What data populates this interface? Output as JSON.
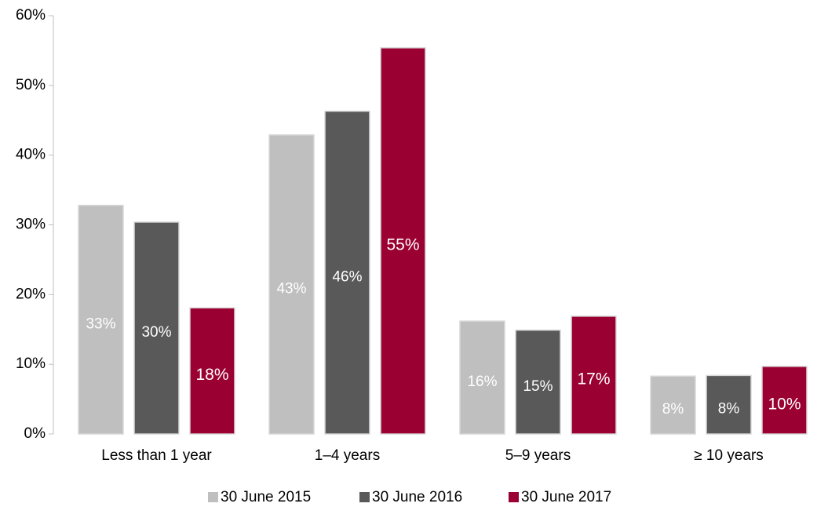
{
  "chart_data": {
    "type": "bar",
    "categories": [
      "Less than 1 year",
      "1–4 years",
      "5–9 years",
      "≥ 10 years"
    ],
    "series": [
      {
        "name": "30 June 2015",
        "color": "#bfbfbf",
        "values": [
          32.8,
          42.9,
          16.2,
          8.3
        ],
        "value_labels": [
          "33%",
          "43%",
          "16%",
          "8%"
        ]
      },
      {
        "name": "30 June 2016",
        "color": "#595959",
        "values": [
          30.4,
          46.3,
          14.9,
          8.4
        ],
        "value_labels": [
          "30%",
          "46%",
          "15%",
          "8%"
        ]
      },
      {
        "name": "30 June 2017",
        "color": "#9b0032",
        "values": [
          18.1,
          55.4,
          16.9,
          9.7
        ],
        "value_labels": [
          "18%",
          "55%",
          "17%",
          "10%"
        ]
      }
    ],
    "ylim": [
      0,
      60
    ],
    "yticks": [
      {
        "value": 0,
        "label": "0%"
      },
      {
        "value": 10,
        "label": "10%"
      },
      {
        "value": 20,
        "label": "20%"
      },
      {
        "value": 30,
        "label": "30%"
      },
      {
        "value": 40,
        "label": "40%"
      },
      {
        "value": 50,
        "label": "50%"
      },
      {
        "value": 60,
        "label": "60%"
      }
    ],
    "grid": false,
    "legend": "bottom"
  }
}
